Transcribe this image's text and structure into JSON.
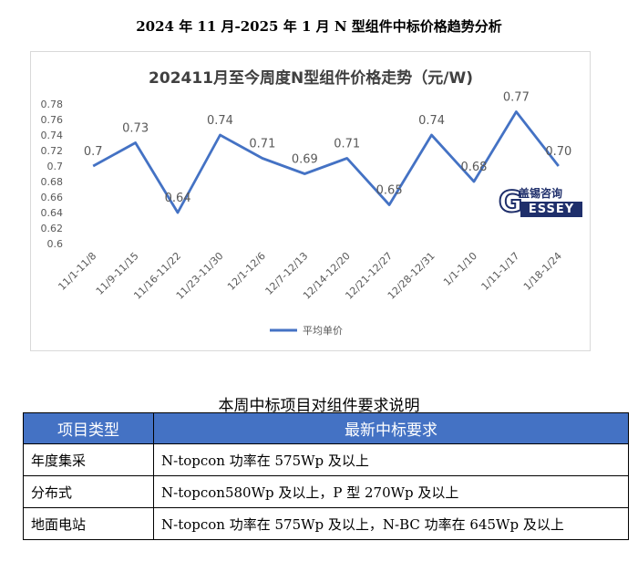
{
  "page": {
    "title": "2024 年 11 月-2025 年 1 月 N 型组件中标价格趋势分析"
  },
  "chart_data": {
    "type": "line",
    "title": "202411月至今周度N型组件价格走势（元/W)",
    "categories": [
      "11/1-11/8",
      "11/9-11/15",
      "11/16-11/22",
      "11/23-11/30",
      "12/1-12/6",
      "12/7-12/13",
      "12/14-12/20",
      "12/21-12/27",
      "12/28-12/31",
      "1/1-1/10",
      "1/11-1/17",
      "1/18-1/24"
    ],
    "series": [
      {
        "name": "平均单价",
        "values": [
          0.7,
          0.73,
          0.64,
          0.74,
          0.71,
          0.69,
          0.71,
          0.65,
          0.74,
          0.68,
          0.77,
          0.7
        ],
        "data_labels": [
          "0.7",
          "0.73",
          "0.64",
          "0.74",
          "0.71",
          "0.69",
          "0.71",
          "0.65",
          "0.74",
          "0.68",
          "0.77",
          "0.70"
        ],
        "color": "#4472c4"
      }
    ],
    "ylim": [
      0.6,
      0.78
    ],
    "yticks": [
      "0.6",
      "0.62",
      "0.64",
      "0.66",
      "0.68",
      "0.7",
      "0.72",
      "0.74",
      "0.76",
      "0.78"
    ],
    "grid": false,
    "legend_position": "bottom"
  },
  "logo": {
    "cn_text": "盖锡咨询",
    "en_text": "ESSEY",
    "g_letter": "G"
  },
  "table": {
    "title": "本周中标项目对组件要求说明",
    "headers": [
      "项目类型",
      "最新中标要求"
    ],
    "rows": [
      [
        "年度集采",
        "N-topcon 功率在 575Wp 及以上"
      ],
      [
        "分布式",
        "N-topcon580Wp 及以上，P 型 270Wp 及以上"
      ],
      [
        "地面电站",
        "N-topcon 功率在 575Wp 及以上，N-BC 功率在 645Wp 及以上"
      ]
    ],
    "header_color": "#4472c4"
  }
}
